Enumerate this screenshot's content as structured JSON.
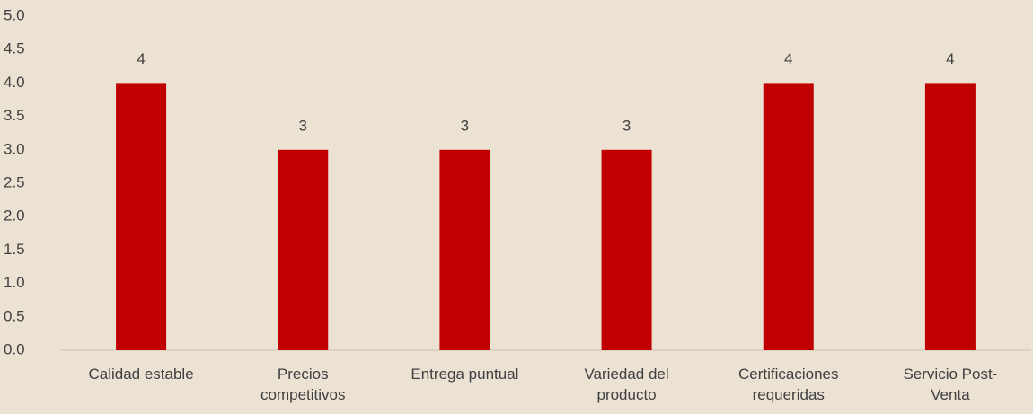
{
  "chart_data": {
    "type": "bar",
    "categories": [
      "Calidad estable",
      "Precios competitivos",
      "Entrega puntual",
      "Variedad del producto",
      "Certificaciones requeridas",
      "Servicio Post-Venta"
    ],
    "values": [
      4,
      3,
      3,
      3,
      4,
      4
    ],
    "color": "#c00000",
    "ylim": [
      0,
      5
    ],
    "yticks": [
      {
        "value": 0,
        "label": "0.0"
      },
      0.5,
      {
        "value": 1,
        "label": "1.0"
      },
      1.5,
      {
        "value": 2,
        "label": "2.0"
      },
      2.5,
      {
        "value": 3,
        "label": "3.0"
      },
      3.5,
      {
        "value": 4,
        "label": "4.0"
      },
      4.5,
      {
        "value": 5,
        "label": "5.0"
      }
    ],
    "grid": false
  }
}
